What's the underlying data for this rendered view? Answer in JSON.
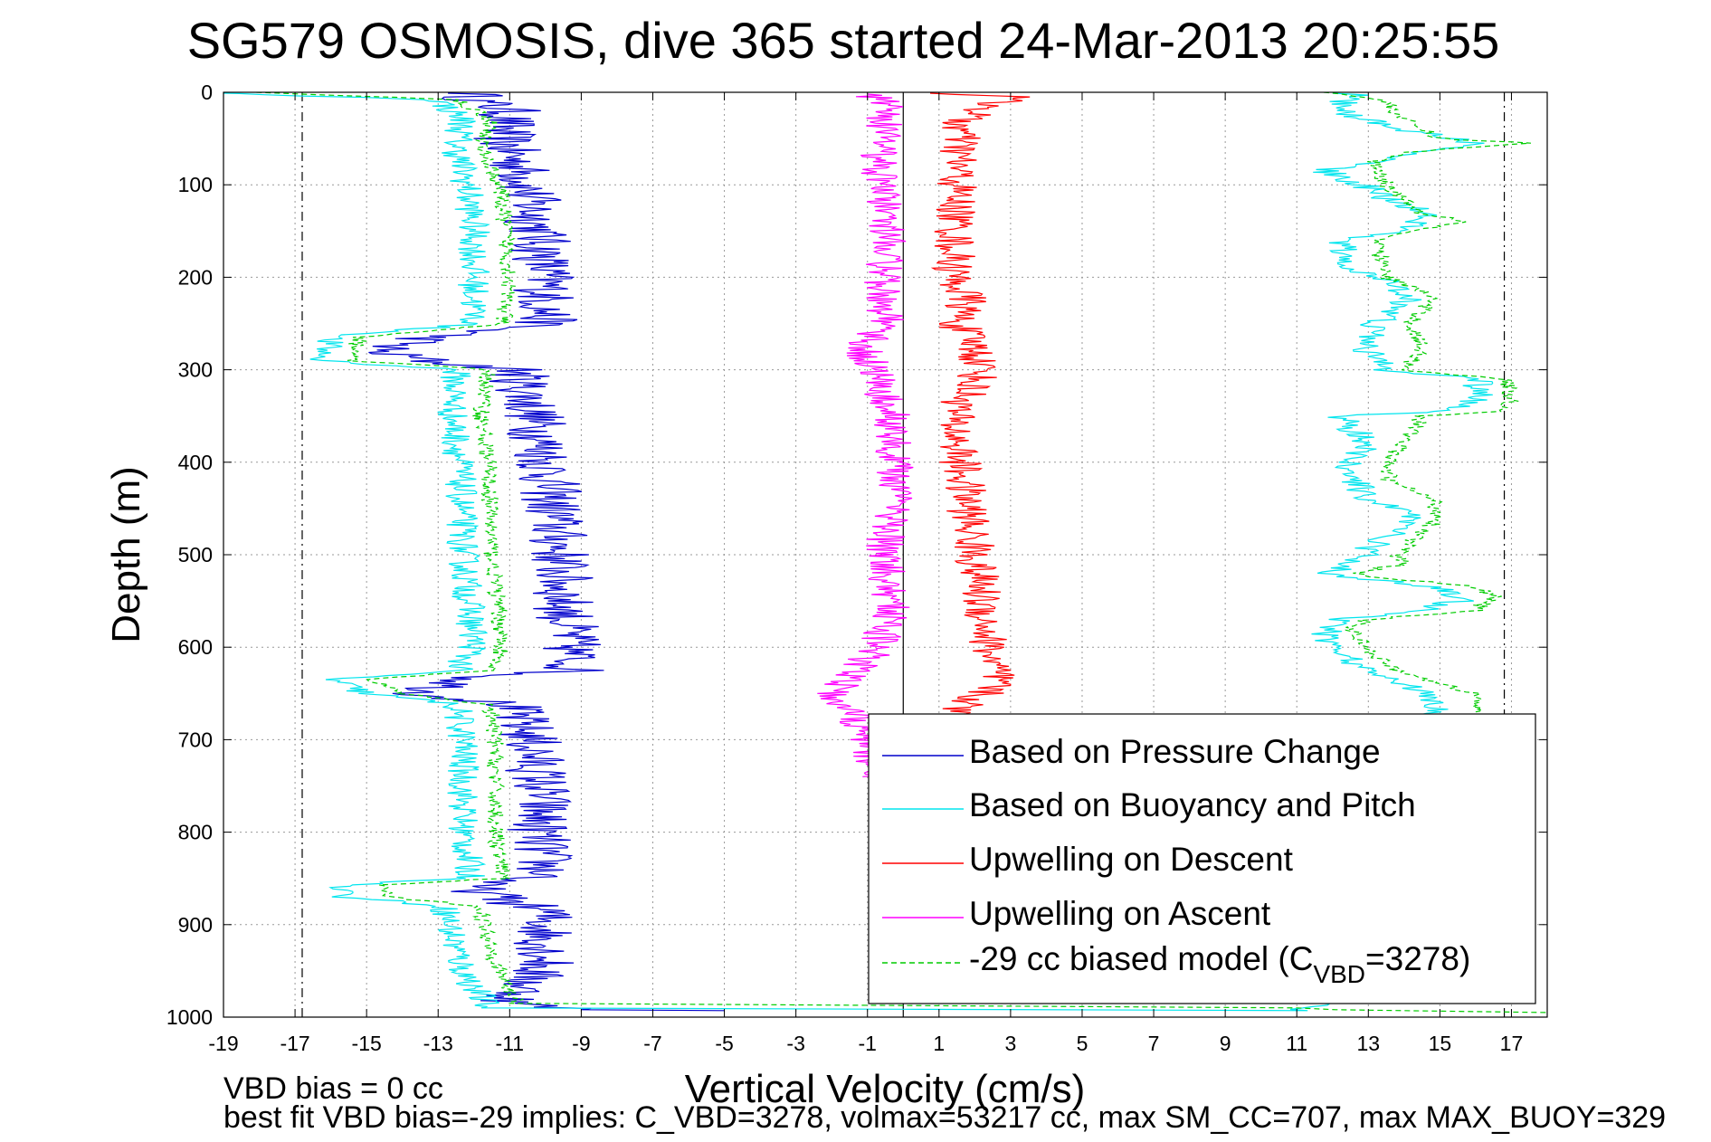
{
  "chart_data": {
    "type": "line",
    "title": "SG579 OSMOSIS, dive 365 started 24-Mar-2013 20:25:55",
    "xlabel": "Vertical Velocity (cm/s)",
    "ylabel": "Depth (m)",
    "xlim": [
      -19,
      18
    ],
    "ylim": [
      0,
      1000
    ],
    "y_reversed": true,
    "grid": true,
    "legend_position": "bottom-right",
    "x_ticks": [
      "-19",
      "-17",
      "-15",
      "-13",
      "-11",
      "-9",
      "-7",
      "-5",
      "-3",
      "-1",
      "1",
      "3",
      "5",
      "7",
      "9",
      "11",
      "13",
      "15",
      "17"
    ],
    "y_ticks": [
      "0",
      "100",
      "200",
      "300",
      "400",
      "500",
      "600",
      "700",
      "800",
      "900",
      "1000"
    ],
    "zero_line_x": 0,
    "dashdot_lines_x": [
      -16.8,
      16.8
    ],
    "series": [
      {
        "name": "Based on Pressure Change",
        "color": "#0000cc",
        "style": "solid",
        "noise": 0.9,
        "points": [
          [
            -12,
            1
          ],
          [
            -12,
            8
          ],
          [
            -11,
            20
          ],
          [
            -11.2,
            50
          ],
          [
            -10.6,
            90
          ],
          [
            -10.2,
            150
          ],
          [
            -10,
            200
          ],
          [
            -10,
            250
          ],
          [
            -13.2,
            265
          ],
          [
            -14.8,
            280
          ],
          [
            -13,
            292
          ],
          [
            -10.8,
            300
          ],
          [
            -10.3,
            350
          ],
          [
            -10,
            400
          ],
          [
            -9.8,
            450
          ],
          [
            -9.6,
            500
          ],
          [
            -9.5,
            550
          ],
          [
            -9.3,
            600
          ],
          [
            -9.2,
            625
          ],
          [
            -12,
            633
          ],
          [
            -13.5,
            650
          ],
          [
            -11,
            662
          ],
          [
            -10.4,
            700
          ],
          [
            -10.1,
            760
          ],
          [
            -10.2,
            800
          ],
          [
            -10,
            848
          ],
          [
            -12.2,
            857
          ],
          [
            -11.4,
            870
          ],
          [
            -10,
            885
          ],
          [
            -10,
            940
          ],
          [
            -11,
            985
          ],
          [
            -9,
            992
          ],
          [
            -5,
            993
          ]
        ]
      },
      {
        "name": "Based on Buoyancy and Pitch",
        "color": "#00e5ee",
        "style": "solid",
        "noise": 0.45,
        "points": [
          [
            -20,
            0
          ],
          [
            -13,
            8
          ],
          [
            -12.3,
            30
          ],
          [
            -12.5,
            60
          ],
          [
            -12.2,
            100
          ],
          [
            -12,
            150
          ],
          [
            -12,
            200
          ],
          [
            -12,
            250
          ],
          [
            -16,
            265
          ],
          [
            -16.3,
            290
          ],
          [
            -12.5,
            300
          ],
          [
            -12.6,
            350
          ],
          [
            -12.4,
            400
          ],
          [
            -12.3,
            500
          ],
          [
            -12,
            600
          ],
          [
            -12.5,
            625
          ],
          [
            -16,
            635
          ],
          [
            -15,
            650
          ],
          [
            -12.5,
            662
          ],
          [
            -12.3,
            700
          ],
          [
            -12.3,
            800
          ],
          [
            -12.1,
            850
          ],
          [
            -15.6,
            857
          ],
          [
            -15.6,
            870
          ],
          [
            -12.8,
            880
          ],
          [
            -12.7,
            900
          ],
          [
            -12.3,
            950
          ],
          [
            -11.6,
            990
          ],
          [
            11,
            993
          ],
          [
            12.5,
            980
          ],
          [
            13,
            960
          ],
          [
            13.2,
            940
          ],
          [
            13,
            900
          ],
          [
            13.2,
            870
          ],
          [
            13.5,
            850
          ],
          [
            14,
            820
          ],
          [
            15.2,
            790
          ],
          [
            15.6,
            760
          ],
          [
            15,
            740
          ],
          [
            14.5,
            700
          ],
          [
            14.8,
            680
          ],
          [
            15,
            660
          ],
          [
            14,
            640
          ],
          [
            12.8,
            620
          ],
          [
            12,
            600
          ],
          [
            11.8,
            580
          ],
          [
            12.2,
            570
          ],
          [
            14.5,
            560
          ],
          [
            15.5,
            550
          ],
          [
            15,
            535
          ],
          [
            12.5,
            525
          ],
          [
            11.8,
            520
          ],
          [
            12.5,
            510
          ],
          [
            13.5,
            480
          ],
          [
            14.2,
            460
          ],
          [
            13,
            440
          ],
          [
            12.6,
            420
          ],
          [
            12.5,
            400
          ],
          [
            13,
            380
          ],
          [
            12.2,
            350
          ],
          [
            15,
            345
          ],
          [
            16.2,
            330
          ],
          [
            16,
            310
          ],
          [
            13.5,
            300
          ],
          [
            13,
            280
          ],
          [
            13.2,
            250
          ],
          [
            14.2,
            220
          ],
          [
            13.2,
            200
          ],
          [
            12.2,
            180
          ],
          [
            12.3,
            160
          ],
          [
            14,
            150
          ],
          [
            14.8,
            130
          ],
          [
            13.8,
            120
          ],
          [
            12.8,
            100
          ],
          [
            11.8,
            85
          ],
          [
            13,
            75
          ],
          [
            16,
            55
          ],
          [
            14,
            40
          ],
          [
            12.5,
            25
          ],
          [
            12.3,
            10
          ],
          [
            13,
            3
          ],
          [
            12,
            1
          ]
        ]
      },
      {
        "name": "Upwelling on Descent",
        "color": "#ff0000",
        "style": "solid",
        "noise": 0.6,
        "points": [
          [
            1,
            1
          ],
          [
            3,
            5
          ],
          [
            1.6,
            30
          ],
          [
            1.5,
            100
          ],
          [
            1.4,
            200
          ],
          [
            1.8,
            225
          ],
          [
            1.5,
            250
          ],
          [
            2,
            275
          ],
          [
            2.2,
            300
          ],
          [
            1.4,
            350
          ],
          [
            1.6,
            400
          ],
          [
            1.8,
            450
          ],
          [
            2,
            500
          ],
          [
            2.2,
            550
          ],
          [
            2.4,
            600
          ],
          [
            2.6,
            640
          ],
          [
            1.6,
            665
          ],
          [
            1.2,
            700
          ]
        ]
      },
      {
        "name": "Upwelling on Ascent",
        "color": "#ff00ff",
        "style": "solid",
        "noise": 0.55,
        "points": [
          [
            -0.9,
            740
          ],
          [
            -1,
            700
          ],
          [
            -1.3,
            675
          ],
          [
            -2,
            650
          ],
          [
            -1.2,
            620
          ],
          [
            -0.7,
            600
          ],
          [
            -0.3,
            550
          ],
          [
            -0.6,
            500
          ],
          [
            -0.3,
            450
          ],
          [
            -0.2,
            400
          ],
          [
            -0.3,
            350
          ],
          [
            -0.8,
            300
          ],
          [
            -1.2,
            275
          ],
          [
            -0.5,
            250
          ],
          [
            -0.6,
            200
          ],
          [
            -0.4,
            150
          ],
          [
            -0.7,
            100
          ],
          [
            -0.6,
            50
          ],
          [
            -0.5,
            10
          ],
          [
            -1,
            2
          ]
        ]
      },
      {
        "name": "-29 cc biased model (C_VBD=3278)",
        "color": "#00cc00",
        "style": "dashed",
        "noise": 0.25,
        "points": [
          [
            -18,
            0
          ],
          [
            -12.5,
            8
          ],
          [
            -11.5,
            30
          ],
          [
            -11.8,
            60
          ],
          [
            -11.3,
            100
          ],
          [
            -11.1,
            150
          ],
          [
            -11,
            200
          ],
          [
            -11.2,
            250
          ],
          [
            -15.2,
            265
          ],
          [
            -15.4,
            290
          ],
          [
            -11.6,
            300
          ],
          [
            -11.8,
            350
          ],
          [
            -11.6,
            400
          ],
          [
            -11.5,
            500
          ],
          [
            -11.2,
            600
          ],
          [
            -11.6,
            625
          ],
          [
            -15,
            635
          ],
          [
            -14,
            650
          ],
          [
            -11.6,
            662
          ],
          [
            -11.4,
            700
          ],
          [
            -11.4,
            800
          ],
          [
            -11.2,
            850
          ],
          [
            -14.5,
            857
          ],
          [
            -14.5,
            870
          ],
          [
            -11.8,
            880
          ],
          [
            -11.7,
            900
          ],
          [
            -11.3,
            950
          ],
          [
            -10.8,
            985
          ],
          [
            11,
            990
          ],
          [
            12,
            992
          ],
          [
            18,
            995
          ]
        ]
      },
      {
        "name": "",
        "color": "#00cc00",
        "style": "dashed",
        "noise": 0.25,
        "points": [
          [
            12,
            0
          ],
          [
            13.5,
            10
          ],
          [
            14,
            30
          ],
          [
            15,
            50
          ],
          [
            17.5,
            55
          ],
          [
            14,
            65
          ],
          [
            13.2,
            75
          ],
          [
            13.5,
            100
          ],
          [
            14.5,
            130
          ],
          [
            15.8,
            140
          ],
          [
            14.2,
            150
          ],
          [
            13.2,
            160
          ],
          [
            13.5,
            200
          ],
          [
            14.8,
            220
          ],
          [
            14.2,
            250
          ],
          [
            14.5,
            280
          ],
          [
            14,
            300
          ],
          [
            16.8,
            310
          ],
          [
            17,
            330
          ],
          [
            16.8,
            345
          ],
          [
            14.5,
            350
          ],
          [
            14,
            380
          ],
          [
            13.5,
            400
          ],
          [
            13.6,
            420
          ],
          [
            14.8,
            440
          ],
          [
            15,
            460
          ],
          [
            14.4,
            480
          ],
          [
            13.8,
            500
          ],
          [
            14,
            510
          ],
          [
            12.5,
            520
          ],
          [
            13.5,
            525
          ],
          [
            16,
            535
          ],
          [
            16.5,
            545
          ],
          [
            16,
            560
          ],
          [
            13,
            570
          ],
          [
            12.5,
            580
          ],
          [
            13,
            600
          ],
          [
            13.5,
            620
          ],
          [
            15,
            640
          ],
          [
            16,
            650
          ],
          [
            16,
            670
          ]
        ]
      }
    ],
    "legend": {
      "entries": [
        {
          "label": "Based on Pressure Change"
        },
        {
          "label": "Based on Buoyancy and Pitch"
        },
        {
          "label": "Upwelling on Descent"
        },
        {
          "label": "Upwelling on Ascent"
        },
        {
          "label_prefix": "-29 cc biased model (C",
          "label_sub": "VBD",
          "label_suffix": "=3278)"
        }
      ]
    },
    "footer": {
      "line1": "VBD bias = 0 cc",
      "line2": "best fit VBD bias=-29 implies: C_VBD=3278, volmax=53217 cc, max SM_CC=707, max MAX_BUOY=329"
    }
  }
}
